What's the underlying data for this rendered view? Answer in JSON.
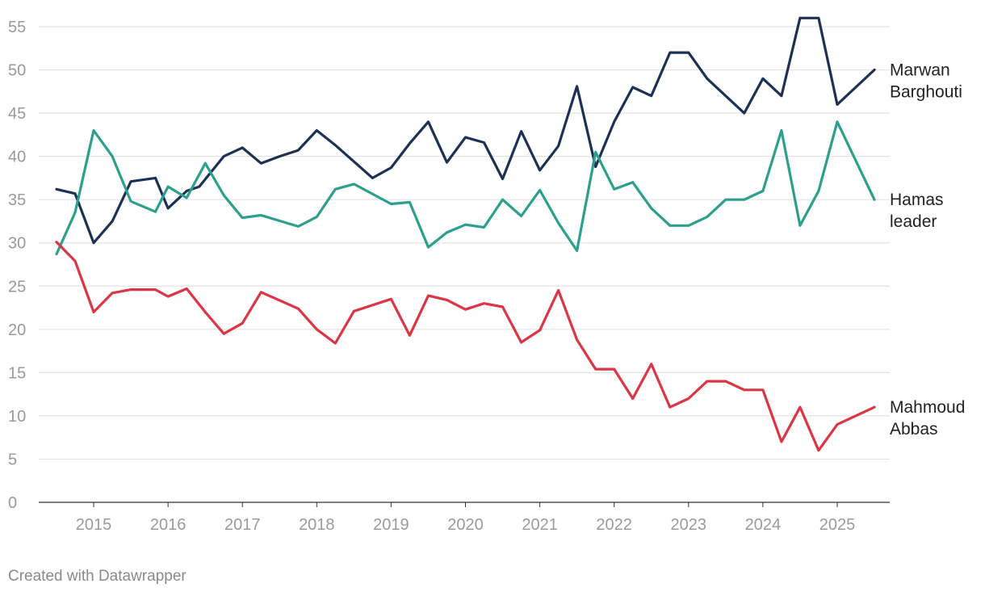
{
  "chart_data": {
    "type": "line",
    "title": "",
    "xlabel": "",
    "ylabel": "",
    "ylim": [
      0,
      55
    ],
    "yticks": [
      0,
      5,
      10,
      15,
      20,
      25,
      30,
      35,
      40,
      45,
      50,
      55
    ],
    "xlim": [
      2014.25,
      2025.7
    ],
    "xticks": [
      2015,
      2016,
      2017,
      2018,
      2019,
      2020,
      2021,
      2022,
      2023,
      2024,
      2025
    ],
    "grid": true,
    "series": [
      {
        "name": "Marwan Barghouti",
        "label_lines": [
          "Marwan",
          "Barghouti"
        ],
        "color": "#1c3153",
        "x": [
          2014.5,
          2014.75,
          2015.0,
          2015.25,
          2015.5,
          2015.83,
          2016.0,
          2016.25,
          2016.42,
          2016.75,
          2017.0,
          2017.25,
          2017.5,
          2017.75,
          2018.0,
          2018.25,
          2018.75,
          2019.0,
          2019.25,
          2019.5,
          2019.75,
          2020.0,
          2020.25,
          2020.5,
          2020.75,
          2021.0,
          2021.25,
          2021.5,
          2021.75,
          2022.0,
          2022.25,
          2022.5,
          2022.75,
          2023.0,
          2023.25,
          2023.75,
          2024.0,
          2024.25,
          2024.5,
          2024.75,
          2025.0,
          2025.5
        ],
        "values": [
          36.2,
          35.7,
          30.0,
          32.5,
          37.1,
          37.5,
          34.0,
          36.0,
          36.5,
          40.0,
          41.0,
          39.2,
          40.0,
          40.7,
          43.0,
          41.3,
          37.5,
          38.7,
          41.5,
          44.0,
          39.3,
          42.2,
          41.6,
          37.4,
          42.9,
          38.4,
          41.2,
          48.1,
          38.8,
          44.0,
          48.0,
          47.0,
          52.0,
          52.0,
          49.0,
          45.0,
          49.0,
          47.0,
          56.0,
          56.0,
          46.0,
          50.0
        ]
      },
      {
        "name": "Hamas leader",
        "label_lines": [
          "Hamas",
          "leader"
        ],
        "color": "#2c9f8d",
        "x": [
          2014.5,
          2014.75,
          2015.0,
          2015.25,
          2015.5,
          2015.83,
          2016.0,
          2016.25,
          2016.5,
          2016.75,
          2017.0,
          2017.25,
          2017.75,
          2018.0,
          2018.25,
          2018.5,
          2019.0,
          2019.25,
          2019.5,
          2019.75,
          2020.0,
          2020.25,
          2020.5,
          2020.75,
          2021.0,
          2021.25,
          2021.5,
          2021.75,
          2022.0,
          2022.25,
          2022.5,
          2022.75,
          2023.0,
          2023.25,
          2023.5,
          2023.75,
          2024.0,
          2024.25,
          2024.5,
          2024.75,
          2025.0,
          2025.5
        ],
        "values": [
          28.7,
          33.5,
          43.0,
          40.0,
          34.8,
          33.6,
          36.5,
          35.2,
          39.2,
          35.5,
          32.9,
          33.2,
          31.9,
          33.0,
          36.2,
          36.8,
          34.5,
          34.7,
          29.5,
          31.2,
          32.1,
          31.8,
          35.0,
          33.1,
          36.1,
          32.3,
          29.1,
          40.5,
          36.2,
          37.0,
          34.0,
          32.0,
          32.0,
          33.0,
          35.0,
          35.0,
          36.0,
          43.0,
          32.0,
          36.0,
          44.0,
          35.0
        ]
      },
      {
        "name": "Mahmoud Abbas",
        "label_lines": [
          "Mahmoud",
          "Abbas"
        ],
        "color": "#dc3545",
        "x": [
          2014.5,
          2014.75,
          2015.0,
          2015.25,
          2015.5,
          2015.83,
          2016.0,
          2016.25,
          2016.5,
          2016.75,
          2017.0,
          2017.25,
          2017.75,
          2018.0,
          2018.25,
          2018.5,
          2019.0,
          2019.25,
          2019.5,
          2019.75,
          2020.0,
          2020.25,
          2020.5,
          2020.75,
          2021.0,
          2021.25,
          2021.5,
          2021.75,
          2022.0,
          2022.25,
          2022.5,
          2022.75,
          2023.0,
          2023.25,
          2023.5,
          2023.75,
          2024.0,
          2024.25,
          2024.5,
          2024.75,
          2025.0,
          2025.5
        ],
        "values": [
          30.1,
          27.9,
          22.0,
          24.2,
          24.6,
          24.6,
          23.8,
          24.7,
          22.0,
          19.5,
          20.7,
          24.3,
          22.4,
          20.0,
          18.4,
          22.1,
          23.5,
          19.3,
          23.9,
          23.4,
          22.3,
          23.0,
          22.6,
          18.5,
          19.9,
          24.5,
          18.8,
          15.4,
          15.4,
          12.0,
          16.0,
          11.0,
          12.0,
          14.0,
          14.0,
          13.0,
          13.0,
          7.0,
          11.0,
          6.0,
          9.0,
          11.0
        ]
      }
    ]
  },
  "credit": "Created with Datawrapper"
}
